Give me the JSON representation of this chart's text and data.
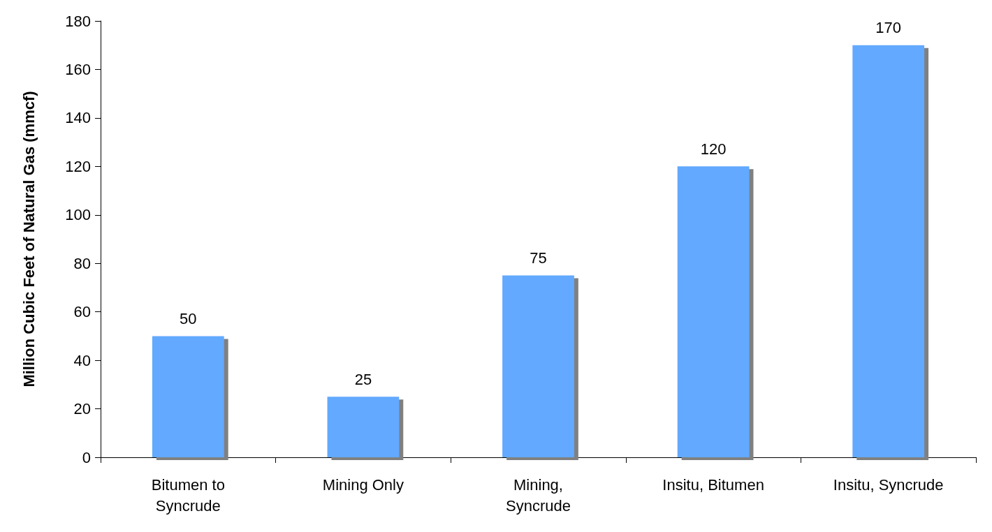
{
  "chart_data": {
    "type": "bar",
    "ylabel": "Million Cubic Feet of Natural Gas (mmcf)",
    "categories": [
      "Bitumen to\nSyncrude",
      "Mining Only",
      "Mining,\nSyncrude",
      "Insitu, Bitumen",
      "Insitu, Syncrude"
    ],
    "values": [
      50,
      25,
      75,
      120,
      170
    ],
    "color": "#62a9ff",
    "ylim": [
      0,
      180
    ],
    "yticks": [
      0,
      20,
      40,
      60,
      80,
      100,
      120,
      140,
      160,
      180
    ],
    "grid": false,
    "data_labels": true
  }
}
